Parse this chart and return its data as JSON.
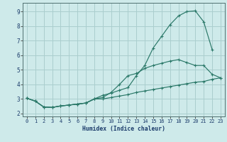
{
  "xlabel": "Humidex (Indice chaleur)",
  "bg_color": "#ceeaea",
  "grid_color": "#aacece",
  "line_color": "#2a7868",
  "xlim": [
    -0.5,
    23.5
  ],
  "ylim": [
    1.8,
    9.6
  ],
  "yticks": [
    2,
    3,
    4,
    5,
    6,
    7,
    8,
    9
  ],
  "xticks": [
    0,
    1,
    2,
    3,
    4,
    5,
    6,
    7,
    8,
    9,
    10,
    11,
    12,
    13,
    14,
    15,
    16,
    17,
    18,
    19,
    20,
    21,
    22,
    23
  ],
  "series1_x": [
    0,
    1,
    2,
    3,
    4,
    5,
    6,
    7,
    8,
    9,
    10,
    11,
    12,
    13,
    14,
    15,
    16,
    17,
    18,
    19,
    20,
    21,
    22,
    23
  ],
  "series1_y": [
    3.05,
    2.85,
    2.45,
    2.42,
    2.52,
    2.58,
    2.65,
    2.72,
    3.0,
    3.25,
    3.4,
    3.6,
    3.78,
    4.6,
    5.3,
    6.5,
    7.3,
    8.1,
    8.7,
    9.0,
    9.05,
    8.3,
    6.4,
    null
  ],
  "series2_x": [
    0,
    1,
    2,
    3,
    4,
    5,
    6,
    7,
    8,
    9,
    10,
    11,
    12,
    13,
    14,
    15,
    16,
    17,
    18,
    19,
    20,
    21,
    22,
    23
  ],
  "series2_y": [
    3.0,
    null,
    null,
    null,
    null,
    null,
    null,
    null,
    null,
    null,
    null,
    null,
    null,
    null,
    null,
    null,
    null,
    null,
    null,
    null,
    null,
    null,
    null,
    null
  ],
  "series_main_x": [
    0,
    1,
    2,
    3,
    4,
    5,
    6,
    7,
    8,
    9,
    10,
    11,
    12,
    13,
    14,
    15,
    16,
    17,
    18,
    19,
    20,
    21,
    22,
    23
  ],
  "series_main_y": [
    3.05,
    2.85,
    2.45,
    2.42,
    2.52,
    2.58,
    2.65,
    2.72,
    3.0,
    3.25,
    3.4,
    3.6,
    3.78,
    4.6,
    5.3,
    6.5,
    7.3,
    8.1,
    8.7,
    9.0,
    9.05,
    8.3,
    6.4,
    null
  ],
  "series_mid_x": [
    0,
    1,
    2,
    3,
    4,
    5,
    6,
    7,
    8,
    9,
    10,
    11,
    12,
    13,
    14,
    15,
    16,
    17,
    18,
    19,
    20,
    21,
    22,
    23
  ],
  "series_mid_y": [
    3.05,
    2.85,
    2.45,
    2.42,
    2.52,
    2.58,
    2.65,
    2.72,
    3.0,
    3.1,
    3.45,
    4.0,
    4.6,
    4.75,
    5.1,
    5.3,
    5.45,
    5.6,
    5.7,
    5.5,
    5.3,
    5.3,
    4.7,
    4.45
  ],
  "series_low_x": [
    0,
    1,
    2,
    3,
    4,
    5,
    6,
    7,
    8,
    9,
    10,
    11,
    12,
    13,
    14,
    15,
    16,
    17,
    18,
    19,
    20,
    21,
    22,
    23
  ],
  "series_low_y": [
    3.05,
    2.85,
    2.45,
    2.42,
    2.52,
    2.58,
    2.65,
    2.72,
    3.0,
    3.0,
    3.1,
    3.2,
    3.3,
    3.45,
    3.55,
    3.65,
    3.75,
    3.85,
    3.95,
    4.05,
    4.15,
    4.2,
    4.35,
    4.45
  ]
}
